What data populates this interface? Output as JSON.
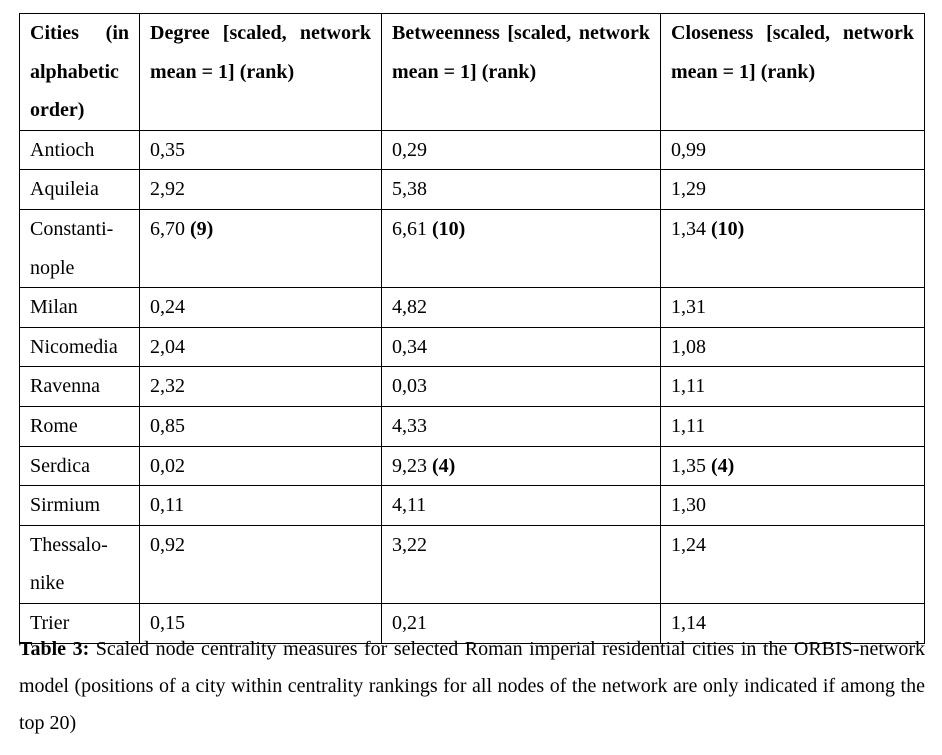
{
  "table": {
    "headers": [
      "Cities (in alphabetic order)",
      "Degree [scaled, network mean = 1] (rank)",
      "Betweenness [scaled, network mean = 1] (rank)",
      "Closeness [scaled, network mean = 1] (rank)"
    ],
    "rows": [
      {
        "city": "Antioch",
        "degree": "0,35",
        "degree_rank": "",
        "betweenness": "0,29",
        "betweenness_rank": "",
        "closeness": "0,99",
        "closeness_rank": ""
      },
      {
        "city": "Aquileia",
        "degree": "2,92",
        "degree_rank": "",
        "betweenness": "5,38",
        "betweenness_rank": "",
        "closeness": "1,29",
        "closeness_rank": ""
      },
      {
        "city": "Constanti-nople",
        "degree": "6,70",
        "degree_rank": "(9)",
        "betweenness": "6,61",
        "betweenness_rank": "(10)",
        "closeness": "1,34",
        "closeness_rank": "(10)"
      },
      {
        "city": "Milan",
        "degree": "0,24",
        "degree_rank": "",
        "betweenness": "4,82",
        "betweenness_rank": "",
        "closeness": "1,31",
        "closeness_rank": ""
      },
      {
        "city": "Nicomedia",
        "degree": "2,04",
        "degree_rank": "",
        "betweenness": "0,34",
        "betweenness_rank": "",
        "closeness": "1,08",
        "closeness_rank": ""
      },
      {
        "city": "Ravenna",
        "degree": "2,32",
        "degree_rank": "",
        "betweenness": "0,03",
        "betweenness_rank": "",
        "closeness": "1,11",
        "closeness_rank": ""
      },
      {
        "city": "Rome",
        "degree": "0,85",
        "degree_rank": "",
        "betweenness": "4,33",
        "betweenness_rank": "",
        "closeness": "1,11",
        "closeness_rank": ""
      },
      {
        "city": "Serdica",
        "degree": "0,02",
        "degree_rank": "",
        "betweenness": "9,23",
        "betweenness_rank": "(4)",
        "closeness": "1,35",
        "closeness_rank": "(4)"
      },
      {
        "city": "Sirmium",
        "degree": "0,11",
        "degree_rank": "",
        "betweenness": "4,11",
        "betweenness_rank": "",
        "closeness": "1,30",
        "closeness_rank": ""
      },
      {
        "city": "Thessalo-nike",
        "degree": "0,92",
        "degree_rank": "",
        "betweenness": "3,22",
        "betweenness_rank": "",
        "closeness": "1,24",
        "closeness_rank": ""
      },
      {
        "city": "Trier",
        "degree": "0,15",
        "degree_rank": "",
        "betweenness": "0,21",
        "betweenness_rank": "",
        "closeness": "1,14",
        "closeness_rank": ""
      }
    ]
  },
  "caption": {
    "label": "Table 3:",
    "text": " Scaled node centrality measures for selected Roman imperial residential cities in the ORBIS-network model (positions of a city within centrality rankings for all nodes of the network are only indicated if among the top 20)"
  }
}
